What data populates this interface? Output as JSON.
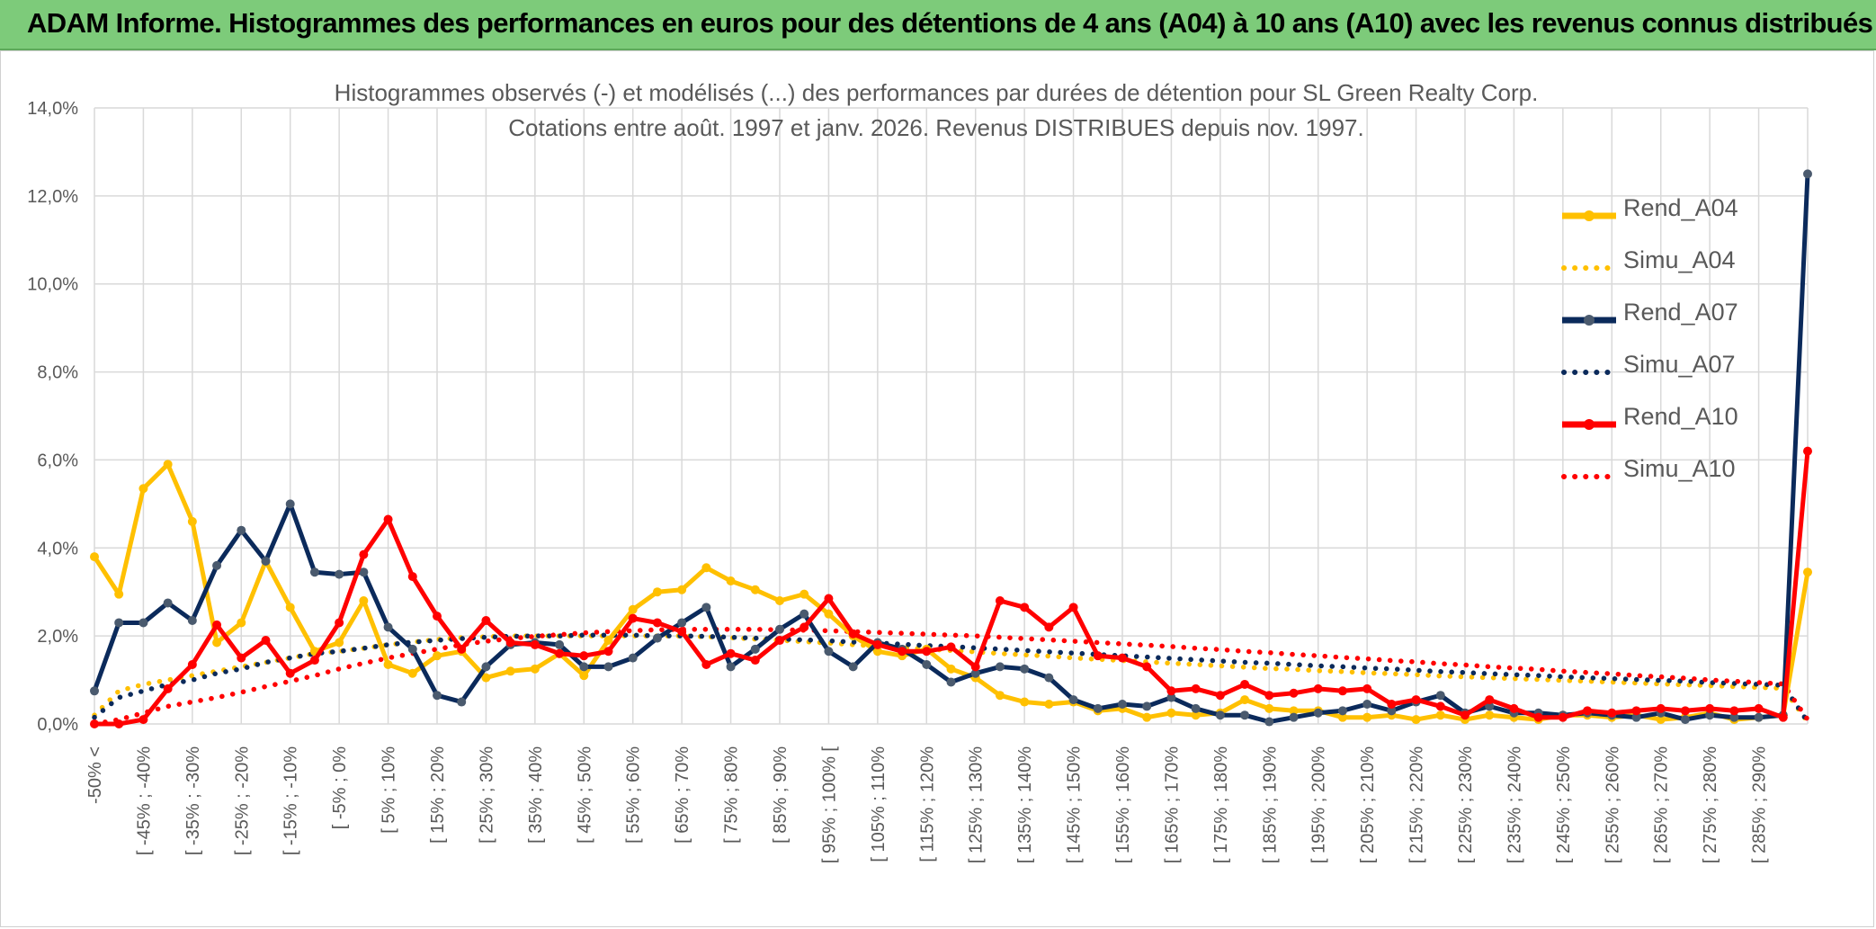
{
  "banner": {
    "title": "ADAM Informe. Histogrammes des performances en euros pour des détentions de 4 ans (A04) à 10 ans (A10) avec les revenus connus distribués"
  },
  "colors": {
    "banner_bg": "#7dcb7a",
    "A04": "#ffc000",
    "A07": "#0b2a5b",
    "A10": "#ff0000"
  },
  "chart_data": {
    "type": "line",
    "title": "Histogrammes observés (-) et modélisés (...) des performances par durées de détention pour SL Green Realty Corp.",
    "subtitle": "Cotations entre août. 1997 et janv. 2026. Revenus DISTRIBUES depuis nov. 1997.",
    "ylim": [
      0,
      14
    ],
    "y_ticks": [
      "0,0%",
      "2,0%",
      "4,0%",
      "6,0%",
      "8,0%",
      "10,0%",
      "12,0%",
      "14,0%"
    ],
    "y_tick_values": [
      0,
      2,
      4,
      6,
      8,
      10,
      12,
      14
    ],
    "grid": true,
    "legend_position": "right",
    "tick_labels": [
      "-50% <",
      "[ -45% ; -40%",
      "[ -35% ; -30%",
      "[ -25% ; -20%",
      "[ -15% ; -10%",
      "[ -5% ; 0%",
      "[ 5% ; 10%",
      "[ 15% ; 20%",
      "[ 25% ; 30%",
      "[ 35% ; 40%",
      "[ 45% ; 50%",
      "[ 55% ; 60%",
      "[ 65% ; 70%",
      "[ 75% ; 80%",
      "[ 85% ; 90%",
      "[ 95% ; 100% [",
      "[ 105% ; 110%",
      "[ 115% ; 120%",
      "[ 125% ; 130%",
      "[ 135% ; 140%",
      "[ 145% ; 150%",
      "[ 155% ; 160%",
      "[ 165% ; 170%",
      "[ 175% ; 180%",
      "[ 185% ; 190%",
      "[ 195% ; 200%",
      "[ 205% ; 210%",
      "[ 215% ; 220%",
      "[ 225% ; 230%",
      "[ 235% ; 240%",
      "[ 245% ; 250%",
      "[ 255% ; 260%",
      "[ 265% ; 270%",
      "[ 275% ; 280%",
      "[ 285% ; 290%"
    ],
    "series": [
      {
        "name": "Rend_A04",
        "style": "solid",
        "color": "#ffc000",
        "values": [
          3.8,
          2.95,
          5.35,
          5.9,
          4.6,
          1.85,
          2.3,
          3.7,
          2.65,
          1.65,
          1.85,
          2.8,
          1.35,
          1.15,
          1.55,
          1.65,
          1.05,
          1.2,
          1.25,
          1.6,
          1.1,
          1.9,
          2.6,
          3.0,
          3.05,
          3.55,
          3.25,
          3.05,
          2.8,
          2.95,
          2.5,
          2.0,
          1.65,
          1.55,
          1.7,
          1.25,
          1.05,
          0.65,
          0.5,
          0.45,
          0.5,
          0.3,
          0.35,
          0.15,
          0.25,
          0.2,
          0.25,
          0.55,
          0.35,
          0.3,
          0.3,
          0.15,
          0.15,
          0.2,
          0.1,
          0.2,
          0.1,
          0.2,
          0.15,
          0.1,
          0.2,
          0.2,
          0.15,
          0.2,
          0.1,
          0.15,
          0.25,
          0.1,
          0.15,
          0.2,
          3.45
        ]
      },
      {
        "name": "Simu_A04",
        "style": "dotted",
        "color": "#ffc000",
        "values": [
          0.2,
          0.75,
          0.9,
          1.0,
          1.1,
          1.2,
          1.3,
          1.4,
          1.5,
          1.6,
          1.65,
          1.72,
          1.8,
          1.86,
          1.92,
          1.96,
          1.98,
          2.0,
          2.0,
          2.0,
          2.0,
          2.0,
          2.0,
          2.0,
          2.0,
          1.98,
          1.96,
          1.93,
          1.9,
          1.87,
          1.84,
          1.8,
          1.77,
          1.74,
          1.7,
          1.67,
          1.64,
          1.6,
          1.57,
          1.54,
          1.5,
          1.47,
          1.44,
          1.41,
          1.38,
          1.35,
          1.32,
          1.29,
          1.26,
          1.24,
          1.21,
          1.19,
          1.16,
          1.14,
          1.12,
          1.09,
          1.07,
          1.05,
          1.03,
          1.01,
          0.99,
          0.97,
          0.95,
          0.93,
          0.91,
          0.89,
          0.87,
          0.85,
          0.83,
          0.81,
          0.05
        ]
      },
      {
        "name": "Rend_A07",
        "style": "solid",
        "color": "#0b2a5b",
        "values": [
          0.75,
          2.3,
          2.3,
          2.75,
          2.35,
          3.6,
          4.4,
          3.7,
          5.0,
          3.45,
          3.4,
          3.45,
          2.2,
          1.7,
          0.65,
          0.5,
          1.3,
          1.8,
          1.85,
          1.8,
          1.3,
          1.3,
          1.5,
          1.95,
          2.3,
          2.65,
          1.3,
          1.7,
          2.15,
          2.5,
          1.65,
          1.3,
          1.85,
          1.7,
          1.35,
          0.95,
          1.15,
          1.3,
          1.25,
          1.05,
          0.55,
          0.35,
          0.45,
          0.4,
          0.6,
          0.35,
          0.2,
          0.2,
          0.05,
          0.15,
          0.25,
          0.3,
          0.45,
          0.3,
          0.5,
          0.65,
          0.25,
          0.4,
          0.25,
          0.25,
          0.2,
          0.25,
          0.2,
          0.15,
          0.25,
          0.1,
          0.2,
          0.15,
          0.15,
          0.2,
          12.5
        ]
      },
      {
        "name": "Simu_A07",
        "style": "dotted",
        "color": "#0b2a5b",
        "values": [
          0.15,
          0.6,
          0.75,
          0.9,
          1.0,
          1.15,
          1.25,
          1.4,
          1.5,
          1.6,
          1.65,
          1.72,
          1.8,
          1.86,
          1.9,
          1.94,
          1.97,
          1.99,
          2.0,
          2.0,
          2.02,
          2.02,
          2.02,
          2.0,
          2.0,
          1.99,
          1.97,
          1.95,
          1.93,
          1.91,
          1.89,
          1.86,
          1.84,
          1.81,
          1.78,
          1.76,
          1.73,
          1.7,
          1.67,
          1.64,
          1.61,
          1.58,
          1.55,
          1.52,
          1.49,
          1.46,
          1.43,
          1.4,
          1.38,
          1.35,
          1.32,
          1.3,
          1.27,
          1.25,
          1.22,
          1.19,
          1.17,
          1.14,
          1.12,
          1.1,
          1.07,
          1.05,
          1.03,
          1.01,
          0.99,
          0.97,
          0.94,
          0.92,
          0.9,
          0.88,
          0.05
        ]
      },
      {
        "name": "Rend_A10",
        "style": "solid",
        "color": "#ff0000",
        "values": [
          0.0,
          0.0,
          0.1,
          0.8,
          1.35,
          2.25,
          1.5,
          1.9,
          1.15,
          1.45,
          2.3,
          3.85,
          4.65,
          3.35,
          2.45,
          1.7,
          2.35,
          1.85,
          1.8,
          1.6,
          1.55,
          1.65,
          2.4,
          2.3,
          2.1,
          1.35,
          1.6,
          1.45,
          1.9,
          2.2,
          2.85,
          2.05,
          1.8,
          1.65,
          1.65,
          1.75,
          1.3,
          2.8,
          2.65,
          2.2,
          2.65,
          1.55,
          1.5,
          1.3,
          0.75,
          0.8,
          0.65,
          0.9,
          0.65,
          0.7,
          0.8,
          0.75,
          0.8,
          0.45,
          0.55,
          0.4,
          0.2,
          0.55,
          0.35,
          0.15,
          0.15,
          0.3,
          0.25,
          0.3,
          0.35,
          0.3,
          0.35,
          0.3,
          0.35,
          0.15,
          6.2
        ]
      },
      {
        "name": "Simu_A10",
        "style": "dotted",
        "color": "#ff0000",
        "values": [
          0.0,
          0.1,
          0.25,
          0.4,
          0.5,
          0.6,
          0.72,
          0.85,
          0.97,
          1.1,
          1.25,
          1.38,
          1.5,
          1.6,
          1.7,
          1.8,
          1.88,
          1.94,
          1.99,
          2.03,
          2.07,
          2.1,
          2.12,
          2.14,
          2.15,
          2.15,
          2.15,
          2.15,
          2.14,
          2.13,
          2.12,
          2.1,
          2.08,
          2.06,
          2.04,
          2.02,
          2.0,
          1.97,
          1.94,
          1.91,
          1.88,
          1.85,
          1.82,
          1.79,
          1.76,
          1.72,
          1.69,
          1.65,
          1.62,
          1.58,
          1.55,
          1.51,
          1.48,
          1.44,
          1.41,
          1.37,
          1.34,
          1.3,
          1.27,
          1.24,
          1.2,
          1.17,
          1.14,
          1.1,
          1.07,
          1.04,
          1.0,
          0.97,
          0.94,
          0.91,
          0.1
        ]
      }
    ]
  }
}
